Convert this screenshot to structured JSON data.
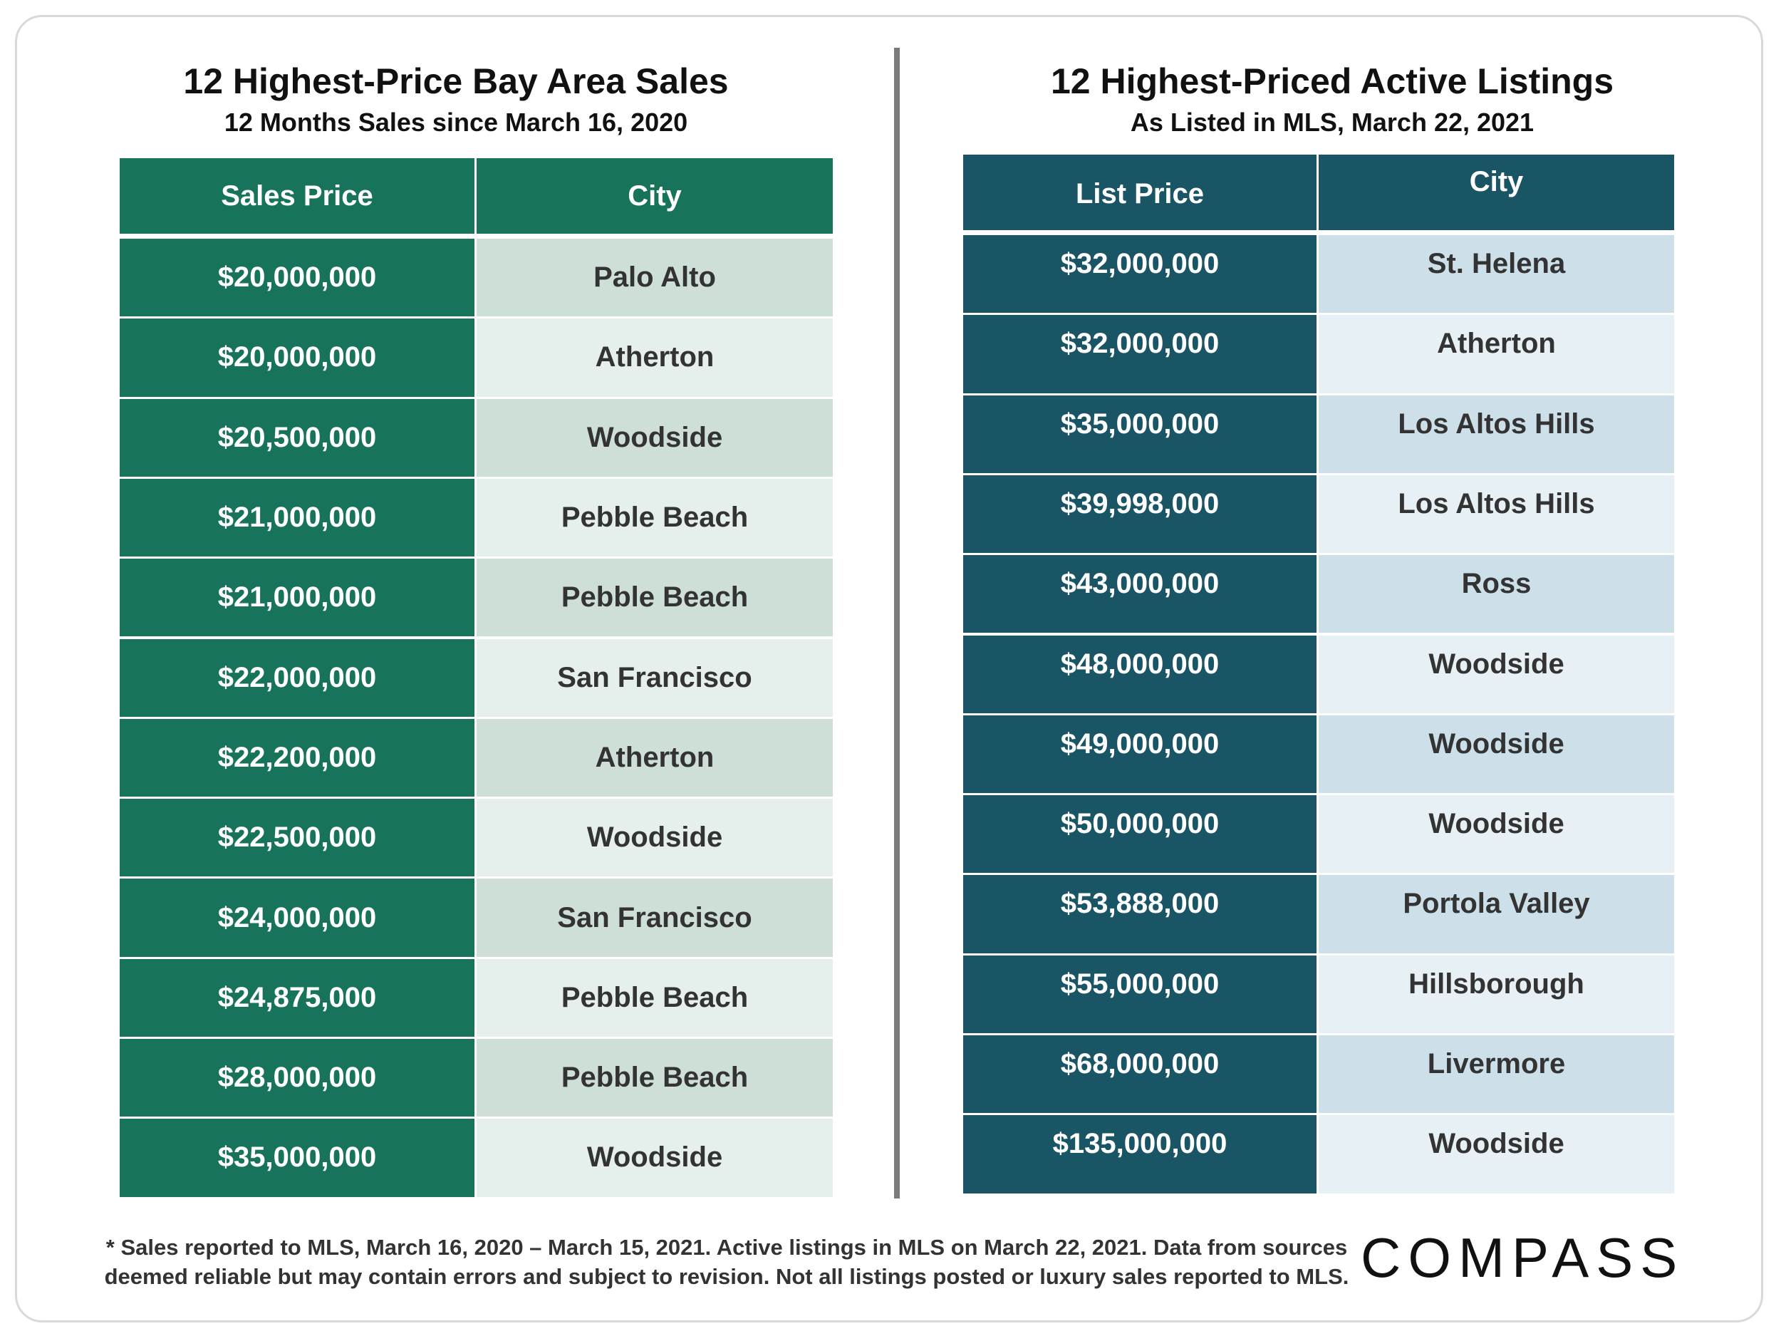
{
  "colors": {
    "left_header": "#17735a",
    "left_price": "#17735a",
    "left_city_a": "#cddfd7",
    "left_city_b": "#e5efeb",
    "right_header": "#1a5566",
    "right_price": "#1a5566",
    "right_city_a": "#cde0ea",
    "right_city_b": "#e6f0f5"
  },
  "left": {
    "title": "12 Highest-Price Bay Area Sales",
    "subtitle": "12 Months Sales since March 16, 2020"
  },
  "right": {
    "title": "12 Highest-Priced Active Listings",
    "subtitle": "As Listed in MLS, March 22, 2021"
  },
  "chart_data": [
    {
      "type": "table",
      "title": "12 Highest-Price Bay Area Sales",
      "subtitle": "12 Months Sales since March 16, 2020",
      "columns": [
        "Sales Price",
        "City"
      ],
      "rows": [
        [
          "$20,000,000",
          "Palo Alto"
        ],
        [
          "$20,000,000",
          "Atherton"
        ],
        [
          "$20,500,000",
          "Woodside"
        ],
        [
          "$21,000,000",
          "Pebble Beach"
        ],
        [
          "$21,000,000",
          "Pebble Beach"
        ],
        [
          "$22,000,000",
          "San Francisco"
        ],
        [
          "$22,200,000",
          "Atherton"
        ],
        [
          "$22,500,000",
          "Woodside"
        ],
        [
          "$24,000,000",
          "San Francisco"
        ],
        [
          "$24,875,000",
          "Pebble Beach"
        ],
        [
          "$28,000,000",
          "Pebble Beach"
        ],
        [
          "$35,000,000",
          "Woodside"
        ]
      ]
    },
    {
      "type": "table",
      "title": "12 Highest-Priced Active Listings",
      "subtitle": "As Listed in MLS, March 22, 2021",
      "columns": [
        "List Price",
        "City"
      ],
      "rows": [
        [
          "$32,000,000",
          "St. Helena"
        ],
        [
          "$32,000,000",
          "Atherton"
        ],
        [
          "$35,000,000",
          "Los Altos Hills"
        ],
        [
          "$39,998,000",
          "Los Altos Hills"
        ],
        [
          "$43,000,000",
          "Ross"
        ],
        [
          "$48,000,000",
          "Woodside"
        ],
        [
          "$49,000,000",
          "Woodside"
        ],
        [
          "$50,000,000",
          "Woodside"
        ],
        [
          "$53,888,000",
          "Portola Valley"
        ],
        [
          "$55,000,000",
          "Hillsborough"
        ],
        [
          "$68,000,000",
          "Livermore"
        ],
        [
          "$135,000,000",
          "Woodside"
        ]
      ]
    }
  ],
  "footnote": {
    "line1": "* Sales reported to MLS, March 16, 2020 – March 15, 2021. Active listings in MLS on March 22, 2021. Data from sources",
    "line2": "deemed reliable but may contain errors and subject to revision. Not all listings posted or luxury sales reported to MLS."
  },
  "logo": {
    "text": "COMPASS"
  }
}
